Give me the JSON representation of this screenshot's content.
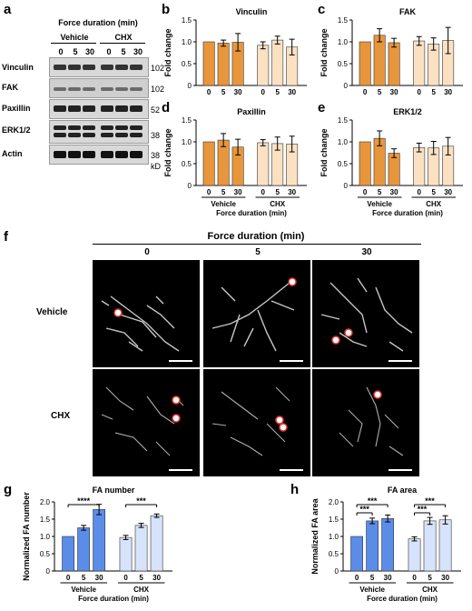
{
  "letters": {
    "a": "a",
    "b": "b",
    "c": "c",
    "d": "d",
    "e": "e",
    "f": "f",
    "g": "g",
    "h": "h"
  },
  "blot": {
    "title": "Force duration (min)",
    "groups": [
      "Vehicle",
      "CHX"
    ],
    "times": [
      "0",
      "5",
      "30",
      "0",
      "5",
      "30"
    ],
    "rows": [
      "Vinculin",
      "FAK",
      "Paxillin",
      "ERK1/2",
      "Actin"
    ],
    "markers": [
      "102",
      "102",
      "52",
      "38",
      "38"
    ],
    "unit": "kD"
  },
  "small_charts": {
    "ylabel": "Fold change",
    "ticks": [
      "0",
      "5",
      "30",
      "0",
      "5",
      "30"
    ],
    "groups": [
      "Vehicle",
      "CHX"
    ],
    "xlabel": "Force duration (min)"
  },
  "chart_data": [
    {
      "type": "bar",
      "title": "Vinculin",
      "ylabel": "Fold change",
      "ylim": [
        0,
        1.5
      ],
      "categories": [
        "0",
        "5",
        "30",
        "0",
        "5",
        "30"
      ],
      "groups": [
        "Vehicle",
        "CHX"
      ],
      "values": [
        1.0,
        0.97,
        0.99,
        0.92,
        1.04,
        0.88
      ],
      "errors": [
        0,
        0.07,
        0.2,
        0.08,
        0.09,
        0.18
      ]
    },
    {
      "type": "bar",
      "title": "FAK",
      "ylabel": "Fold change",
      "ylim": [
        0,
        1.5
      ],
      "categories": [
        "0",
        "5",
        "30",
        "0",
        "5",
        "30"
      ],
      "groups": [
        "Vehicle",
        "CHX"
      ],
      "values": [
        1.0,
        1.15,
        0.98,
        1.02,
        0.95,
        1.03
      ],
      "errors": [
        0,
        0.15,
        0.1,
        0.1,
        0.14,
        0.3
      ]
    },
    {
      "type": "bar",
      "title": "Paxillin",
      "ylabel": "Fold change",
      "ylim": [
        0,
        1.5
      ],
      "categories": [
        "0",
        "5",
        "30",
        "0",
        "5",
        "30"
      ],
      "groups": [
        "Vehicle",
        "CHX"
      ],
      "values": [
        1.0,
        1.04,
        0.88,
        0.98,
        0.96,
        0.95
      ],
      "errors": [
        0,
        0.15,
        0.18,
        0.07,
        0.15,
        0.18
      ]
    },
    {
      "type": "bar",
      "title": "ERK1/2",
      "ylabel": "Fold change",
      "ylim": [
        0,
        1.5
      ],
      "categories": [
        "0",
        "5",
        "30",
        "0",
        "5",
        "30"
      ],
      "groups": [
        "Vehicle",
        "CHX"
      ],
      "values": [
        1.0,
        1.08,
        0.74,
        0.87,
        0.86,
        0.9
      ],
      "errors": [
        0,
        0.17,
        0.1,
        0.1,
        0.15,
        0.2
      ]
    },
    {
      "type": "bar",
      "title": "FA number",
      "ylabel": "Normalized FA number",
      "ylim": [
        0,
        2.0
      ],
      "yticks": [
        "0",
        "0.5",
        "1.0",
        "1.5",
        "2.0"
      ],
      "categories": [
        "0",
        "5",
        "30",
        "0",
        "5",
        "30"
      ],
      "groups": [
        "Vehicle",
        "CHX"
      ],
      "xlabel": "Force duration (min)",
      "values": [
        1.0,
        1.25,
        1.78,
        0.97,
        1.32,
        1.6
      ],
      "errors": [
        0,
        0.07,
        0.15,
        0.06,
        0.06,
        0.05
      ],
      "significance": [
        {
          "from": 0,
          "to": 2,
          "label": "****"
        },
        {
          "from": 3,
          "to": 5,
          "label": "***"
        }
      ]
    },
    {
      "type": "bar",
      "title": "FA area",
      "ylabel": "Normalized FA area",
      "ylim": [
        0,
        2.0
      ],
      "yticks": [
        "0",
        "0.5",
        "1.0",
        "1.5",
        "2.0"
      ],
      "categories": [
        "0",
        "5",
        "30",
        "0",
        "5",
        "30"
      ],
      "groups": [
        "Vehicle",
        "CHX"
      ],
      "xlabel": "Force duration (min)",
      "values": [
        1.0,
        1.45,
        1.52,
        0.93,
        1.45,
        1.48
      ],
      "errors": [
        0,
        0.08,
        0.1,
        0.06,
        0.1,
        0.12
      ],
      "significance": [
        {
          "from": 0,
          "to": 2,
          "label": "***"
        },
        {
          "from": 0,
          "to": 1,
          "label": "***"
        },
        {
          "from": 3,
          "to": 5,
          "label": "***"
        },
        {
          "from": 3,
          "to": 4,
          "label": "***"
        }
      ]
    }
  ],
  "micro": {
    "title": "Force duration (min)",
    "cols": [
      "0",
      "5",
      "30"
    ],
    "rows": [
      "Vehicle",
      "CHX"
    ]
  },
  "colors": {
    "vehicle_orange": "#e8963c",
    "chx_orange": "#fbe1c2",
    "vehicle_blue": "#5b8de8",
    "chx_blue": "#d6e3fa"
  }
}
